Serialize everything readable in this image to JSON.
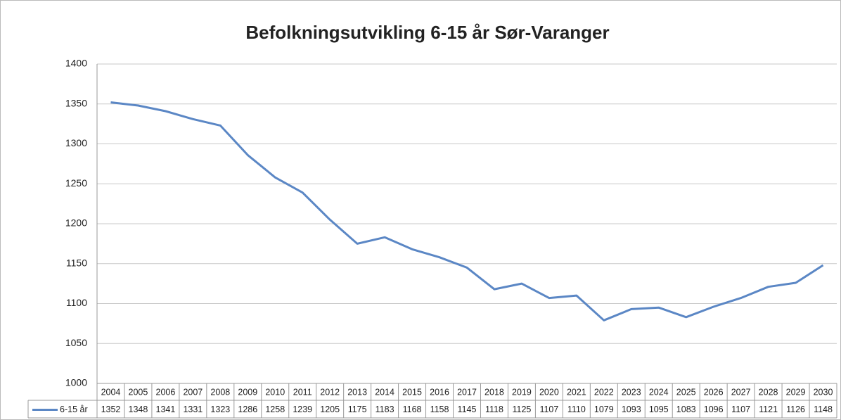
{
  "chart_data": {
    "type": "line",
    "title": "Befolkningsutvikling 6-15 år Sør-Varanger",
    "categories": [
      "2004",
      "2005",
      "2006",
      "2007",
      "2008",
      "2009",
      "2010",
      "2011",
      "2012",
      "2013",
      "2014",
      "2015",
      "2016",
      "2017",
      "2018",
      "2019",
      "2020",
      "2021",
      "2022",
      "2023",
      "2024",
      "2025",
      "2026",
      "2027",
      "2028",
      "2029",
      "2030"
    ],
    "series": [
      {
        "name": "6-15 år",
        "color": "#5b87c5",
        "values": [
          1352,
          1348,
          1341,
          1331,
          1323,
          1286,
          1258,
          1239,
          1205,
          1175,
          1183,
          1168,
          1158,
          1145,
          1118,
          1125,
          1107,
          1110,
          1079,
          1093,
          1095,
          1083,
          1096,
          1107,
          1121,
          1126,
          1148
        ]
      }
    ],
    "ylim": [
      1000,
      1400
    ],
    "yticks": [
      1000,
      1050,
      1100,
      1150,
      1200,
      1250,
      1300,
      1350,
      1400
    ],
    "grid": true
  }
}
